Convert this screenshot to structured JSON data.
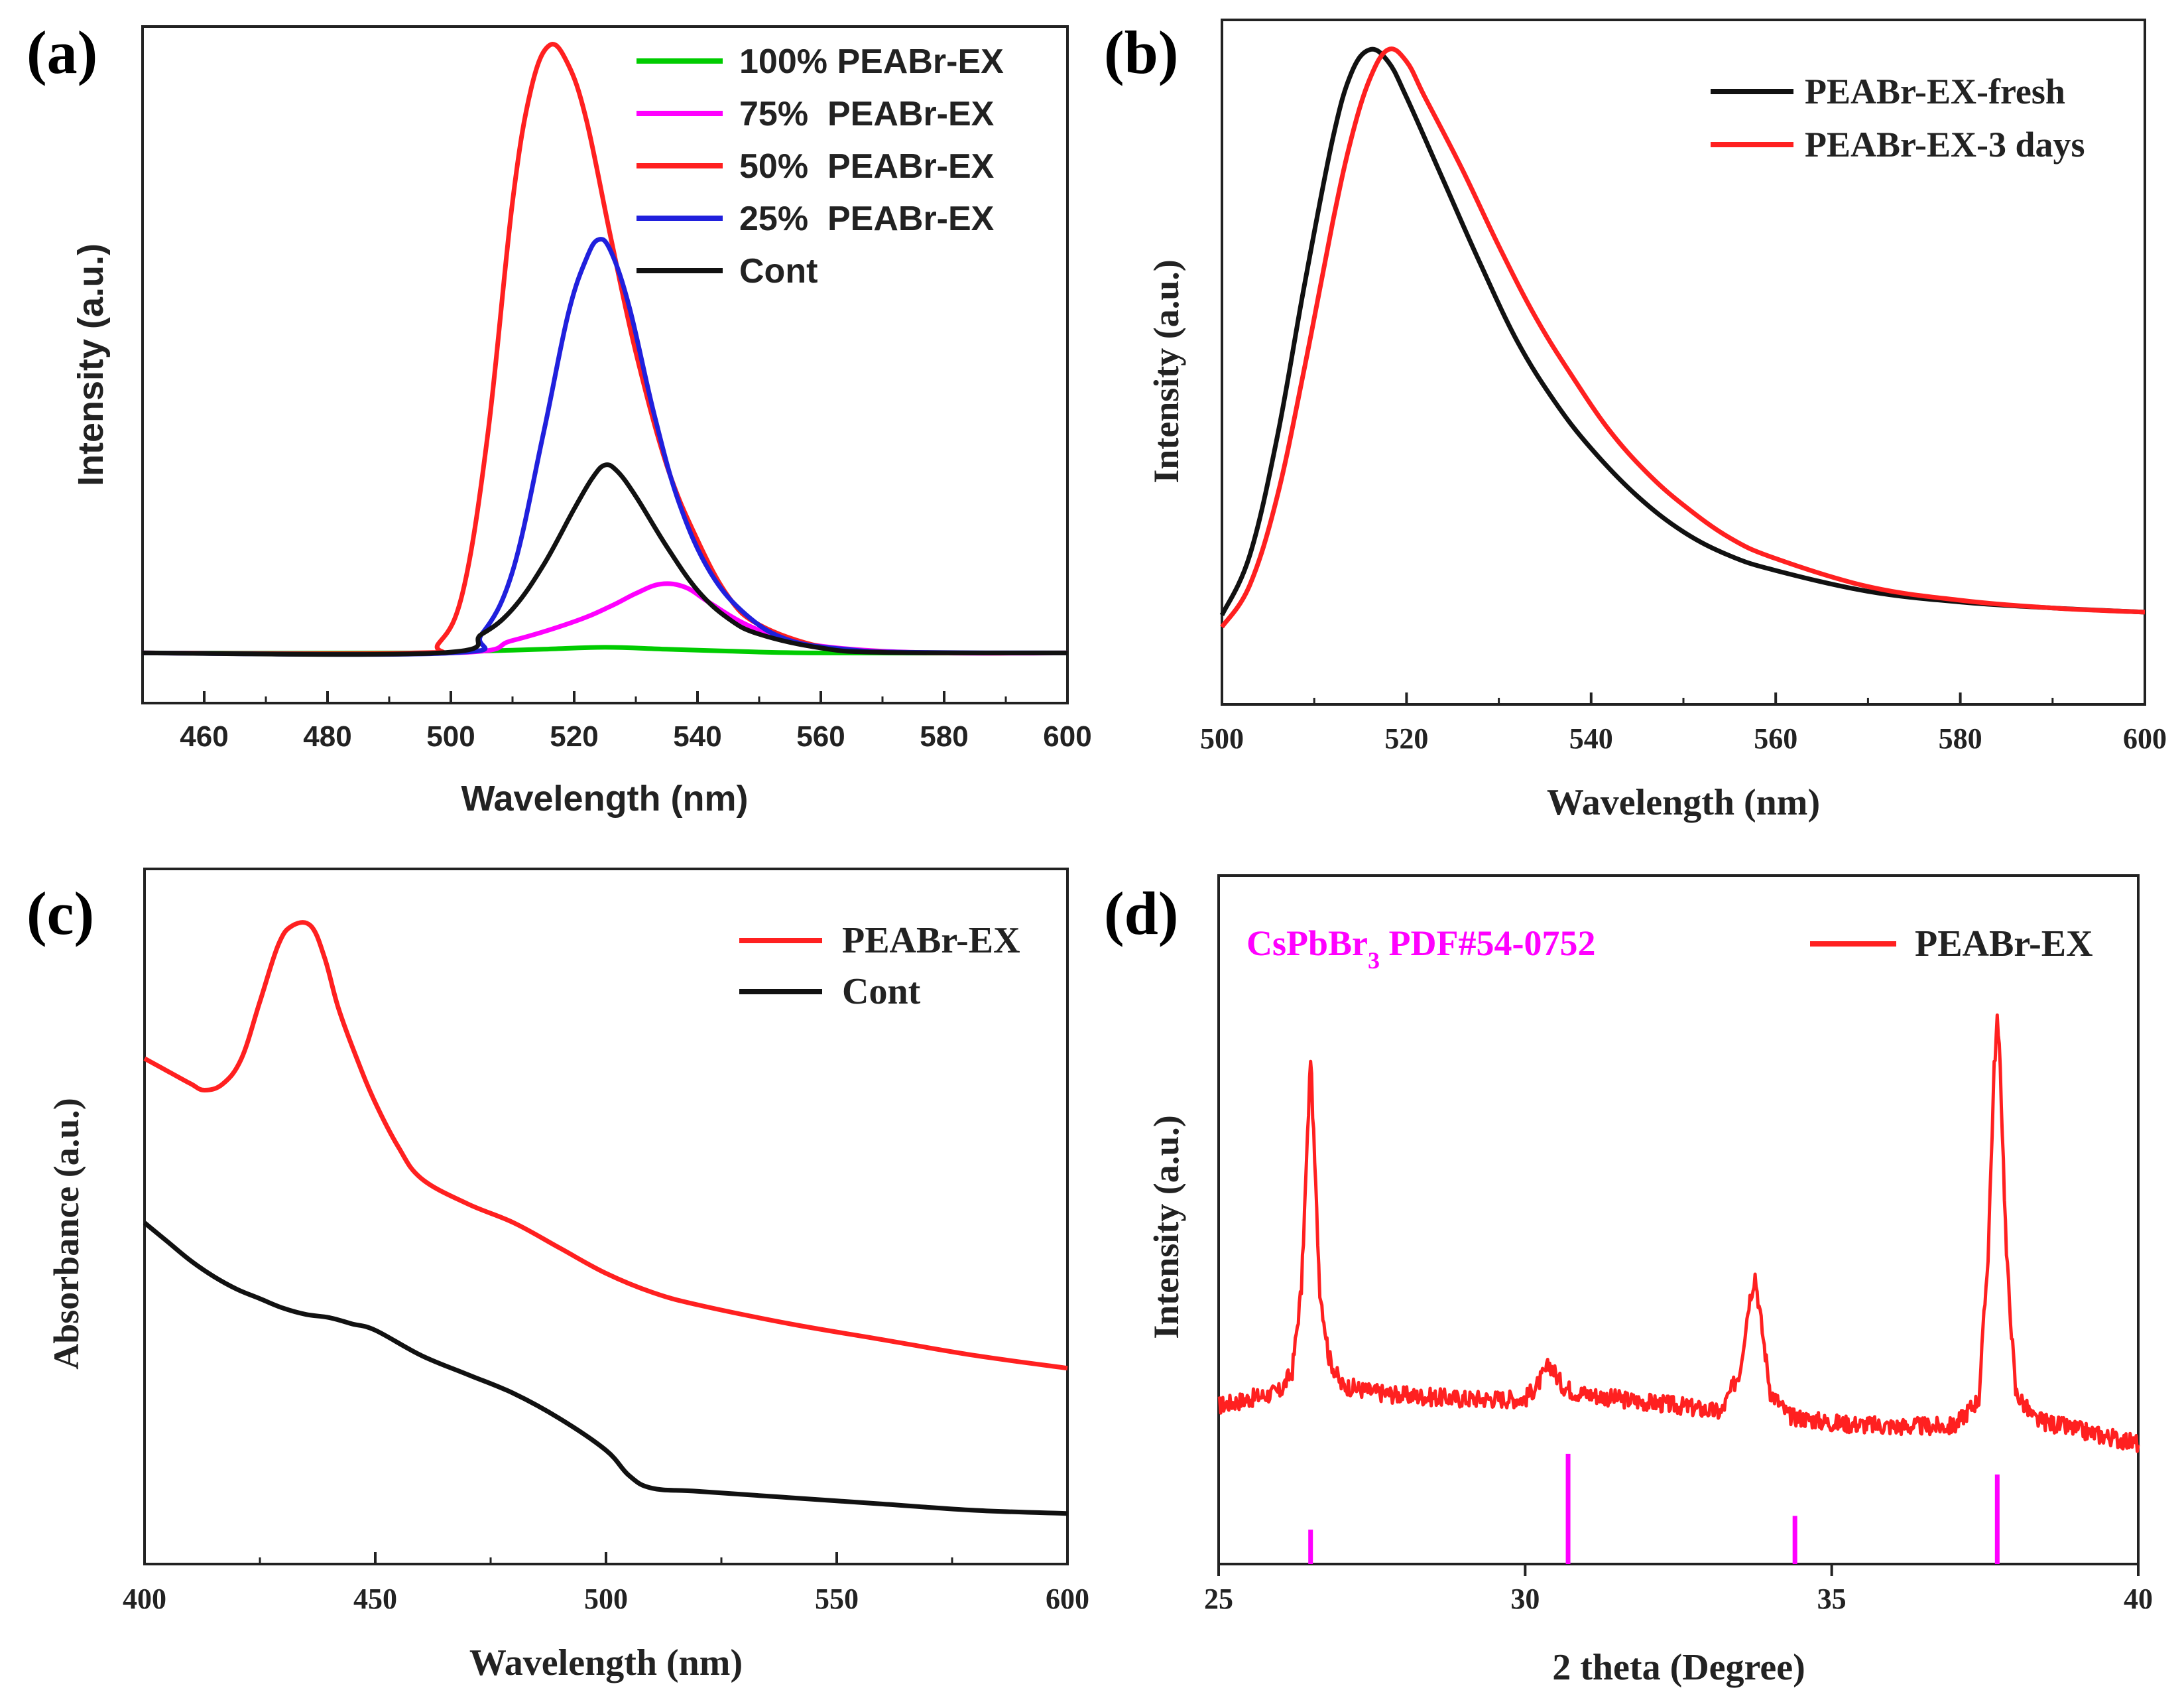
{
  "chart_data": [
    {
      "panel": "(a)",
      "type": "line",
      "xlabel": "Wavelength (nm)",
      "ylabel": "Intensity (a.u.)",
      "xlim": [
        450,
        600
      ],
      "ylim": [
        -8,
        100
      ],
      "xticks": [
        460,
        480,
        500,
        520,
        540,
        560,
        580,
        600
      ],
      "yticks": [],
      "legend_position": "top-right",
      "series": [
        {
          "name": "100% PEABr-EX",
          "color": "#00cc00",
          "x": [
            450,
            495,
            505,
            515,
            525,
            535,
            545,
            560,
            600
          ],
          "y": [
            0,
            0,
            0.3,
            0.6,
            0.9,
            0.6,
            0.3,
            0,
            0
          ]
        },
        {
          "name": "75%  PEABr-EX",
          "color": "#ff00ff",
          "x": [
            450,
            500,
            510,
            520,
            526,
            530,
            534,
            538,
            542,
            548,
            555,
            565,
            580,
            600
          ],
          "y": [
            0,
            0,
            2,
            5,
            7.5,
            9.5,
            11,
            10.5,
            8,
            4.5,
            2,
            0.6,
            0,
            0
          ]
        },
        {
          "name": "50%  PEABr-EX",
          "color": "#ff2020",
          "x": [
            450,
            494,
            498,
            502,
            506,
            510,
            513,
            516,
            519,
            522,
            526,
            530,
            535,
            540,
            545,
            550,
            560,
            570,
            580,
            600
          ],
          "y": [
            0,
            0,
            1.5,
            10,
            35,
            72,
            90,
            97,
            94,
            85,
            66,
            48,
            30,
            18,
            9,
            4.5,
            1,
            0.2,
            0,
            0
          ]
        },
        {
          "name": "25%  PEABr-EX",
          "color": "#2020dd",
          "x": [
            450,
            500,
            505,
            510,
            515,
            519,
            522,
            524,
            526,
            529,
            533,
            537,
            542,
            548,
            555,
            565,
            575,
            600
          ],
          "y": [
            0,
            0,
            3,
            13,
            35,
            54,
            63,
            66,
            64,
            55,
            38,
            24,
            13,
            6,
            2,
            0.5,
            0.1,
            0
          ]
        },
        {
          "name": "Cont",
          "color": "#111111",
          "x": [
            450,
            498,
            505,
            510,
            515,
            520,
            523,
            525,
            527,
            530,
            535,
            540,
            545,
            550,
            560,
            570,
            600
          ],
          "y": [
            0,
            0,
            3,
            7,
            14,
            23,
            28,
            30,
            29,
            25,
            17,
            10,
            5.5,
            3,
            0.8,
            0.1,
            0
          ]
        }
      ]
    },
    {
      "panel": "(b)",
      "type": "line",
      "xlabel": "Wavelength (nm)",
      "ylabel": "Intensity (a.u.)",
      "xlim": [
        500,
        600
      ],
      "ylim": [
        -15,
        100
      ],
      "xticks": [
        500,
        520,
        540,
        560,
        580,
        600
      ],
      "yticks": [],
      "legend_position": "top-right",
      "series": [
        {
          "name": "PEABr-EX-fresh",
          "color": "#111111",
          "x": [
            500,
            503,
            506,
            509,
            512,
            514,
            516,
            518,
            520,
            524,
            528,
            532,
            536,
            540,
            545,
            550,
            555,
            560,
            570,
            580,
            590,
            600
          ],
          "y": [
            0,
            10,
            30,
            56,
            80,
            91,
            95,
            93,
            87,
            73,
            59,
            46,
            36,
            28,
            20,
            14,
            10,
            7.5,
            4,
            2.2,
            1.2,
            0.5
          ]
        },
        {
          "name": "PEABr-EX-3 days",
          "color": "#ff2020",
          "x": [
            500,
            503,
            506,
            509,
            512,
            514,
            516,
            518,
            520,
            522,
            526,
            530,
            534,
            538,
            542,
            546,
            550,
            555,
            560,
            570,
            580,
            590,
            600
          ],
          "y": [
            -2,
            5,
            20,
            42,
            66,
            80,
            90,
            95,
            93,
            87,
            75,
            62,
            50,
            40,
            31,
            24,
            18.5,
            13,
            9.5,
            4.8,
            2.5,
            1.2,
            0.5
          ]
        }
      ]
    },
    {
      "panel": "(c)",
      "type": "line",
      "xlabel": "Wavelength (nm)",
      "ylabel": "Absorbance (a.u.)",
      "xlim": [
        400,
        600
      ],
      "ylim": [
        0,
        110
      ],
      "xticks": [
        400,
        450,
        500,
        550,
        600
      ],
      "yticks": [],
      "legend_position": "top-right",
      "series": [
        {
          "name": "PEABr-EX",
          "color": "#ff2020",
          "x": [
            400,
            405,
            410,
            413,
            417,
            421,
            425,
            429,
            432,
            436,
            439,
            442,
            446,
            450,
            455,
            460,
            470,
            480,
            490,
            500,
            510,
            520,
            540,
            560,
            580,
            600
          ],
          "y": [
            80,
            78,
            76,
            75,
            76,
            80,
            89,
            98,
            101,
            101,
            96,
            88,
            80,
            73,
            66,
            61,
            57,
            54,
            50,
            46,
            43,
            41,
            38,
            35.5,
            33,
            31
          ]
        },
        {
          "name": "Cont",
          "color": "#111111",
          "x": [
            400,
            405,
            410,
            415,
            420,
            425,
            430,
            435,
            440,
            445,
            450,
            460,
            470,
            480,
            490,
            500,
            505,
            510,
            520,
            540,
            560,
            580,
            600
          ],
          "y": [
            54,
            51,
            48,
            45.5,
            43.5,
            42,
            40.5,
            39.5,
            39,
            38,
            37,
            33,
            30,
            27,
            23,
            18,
            14,
            12,
            11.5,
            10.5,
            9.5,
            8.5,
            8
          ]
        }
      ]
    },
    {
      "panel": "(d)",
      "type": "line",
      "xlabel": "2 theta (Degree)",
      "ylabel": "Intensity (a.u.)",
      "xlim": [
        25,
        40
      ],
      "ylim": [
        0,
        100
      ],
      "xticks": [
        25,
        30,
        35,
        40
      ],
      "yticks": [],
      "legend_position": "top-right",
      "annotation": {
        "main": "CsPbBr",
        "sub": "3",
        "rest": " PDF#54-0752",
        "color": "#ff00ff"
      },
      "series": [
        {
          "name": "PEABr-EX",
          "color": "#ff2020",
          "x": [
            25,
            25.5,
            26,
            26.2,
            26.35,
            26.45,
            26.5,
            26.55,
            26.65,
            26.8,
            27.0,
            27.5,
            28,
            29,
            30,
            30.2,
            30.4,
            30.6,
            30.8,
            31.5,
            32.5,
            33.2,
            33.5,
            33.65,
            33.75,
            33.85,
            34.0,
            34.3,
            35,
            36,
            37,
            37.4,
            37.55,
            37.65,
            37.7,
            37.75,
            37.85,
            38.0,
            38.3,
            39,
            40
          ],
          "y": [
            23,
            24,
            25,
            28,
            40,
            62,
            74,
            62,
            40,
            30,
            26,
            25,
            24.5,
            24,
            24,
            26,
            29,
            26,
            25,
            24,
            23,
            22,
            28,
            38,
            42,
            35,
            25,
            21.5,
            20.5,
            20,
            20,
            24,
            45,
            72,
            79,
            72,
            45,
            25,
            21,
            19.5,
            17.5
          ]
        }
      ],
      "reference_peaks": {
        "name": "CsPbBr3 PDF#54-0752",
        "color": "#ff00ff",
        "x": [
          26.5,
          30.7,
          34.4,
          37.7
        ],
        "height": [
          5,
          16,
          7,
          13
        ]
      }
    }
  ],
  "panels": [
    {
      "label": "(a)",
      "xlabel": "Wavelength (nm)",
      "ylabel": "Intensity (a.u.)",
      "tick_labels": [
        "460",
        "480",
        "500",
        "520",
        "540",
        "560",
        "580",
        "600"
      ],
      "legend": [
        "100% PEABr-EX",
        "75%  PEABr-EX",
        "50%  PEABr-EX",
        "25%  PEABr-EX",
        "Cont"
      ]
    },
    {
      "label": "(b)",
      "xlabel": "Wavelength (nm)",
      "ylabel": "Intensity (a.u.)",
      "tick_labels": [
        "500",
        "520",
        "540",
        "560",
        "580",
        "600"
      ],
      "legend": [
        "PEABr-EX-fresh",
        "PEABr-EX-3 days"
      ]
    },
    {
      "label": "(c)",
      "xlabel": "Wavelength (nm)",
      "ylabel": "Absorbance (a.u.)",
      "tick_labels": [
        "400",
        "450",
        "500",
        "550",
        "600"
      ],
      "legend": [
        "PEABr-EX",
        "Cont"
      ]
    },
    {
      "label": "(d)",
      "xlabel": "2 theta (Degree)",
      "ylabel": "Intensity (a.u.)",
      "tick_labels": [
        "25",
        "30",
        "35",
        "40"
      ],
      "legend": [
        "PEABr-EX"
      ]
    }
  ]
}
